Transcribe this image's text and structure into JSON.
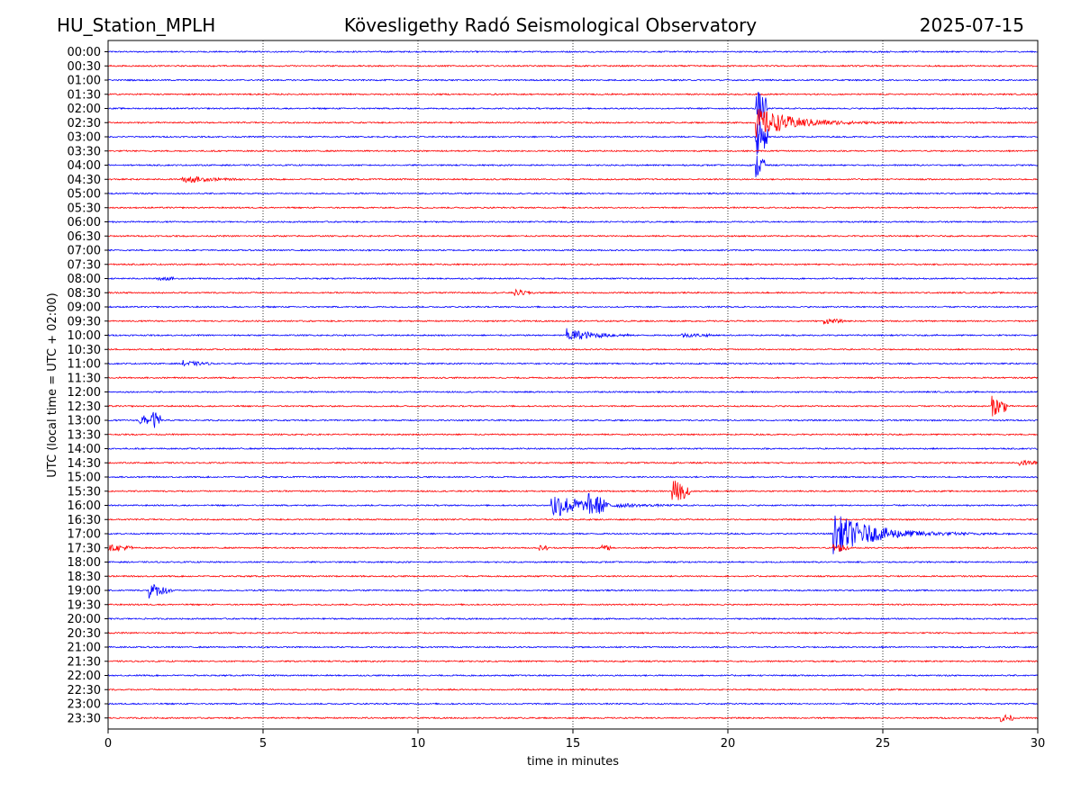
{
  "header": {
    "station": "HU_Station_MPLH",
    "observatory": "Kövesligethy Radó Seismological Observatory",
    "date": "2025-07-15"
  },
  "chart_data": {
    "type": "line",
    "title": "Kövesligethy Radó Seismological Observatory",
    "xlabel": "time in minutes",
    "ylabel": "UTC (local time = UTC + 02:00)",
    "xlim": [
      0,
      30
    ],
    "xticks": [
      "0",
      "5",
      "10",
      "15",
      "20",
      "25",
      "30"
    ],
    "grid": "vertical dotted lines at 5-minute intervals",
    "colors": {
      "even_half_hour": "#0000ff",
      "odd_half_hour": "#ff0000"
    },
    "rows": [
      "00:00",
      "00:30",
      "01:00",
      "01:30",
      "02:00",
      "02:30",
      "03:00",
      "03:30",
      "04:00",
      "04:30",
      "05:00",
      "05:30",
      "06:00",
      "06:30",
      "07:00",
      "07:30",
      "08:00",
      "08:30",
      "09:00",
      "09:30",
      "10:00",
      "10:30",
      "11:00",
      "11:30",
      "12:00",
      "12:30",
      "13:00",
      "13:30",
      "14:00",
      "14:30",
      "15:00",
      "15:30",
      "16:00",
      "16:30",
      "17:00",
      "17:30",
      "18:00",
      "18:30",
      "19:00",
      "19:30",
      "20:00",
      "20:30",
      "21:00",
      "21:30",
      "22:00",
      "22:30",
      "23:00",
      "23:30"
    ],
    "events": [
      {
        "row": "02:30",
        "start_min": 20.9,
        "dur_min": 6.5,
        "amp": 1.8,
        "decay": 0.9
      },
      {
        "row": "02:00",
        "start_min": 20.9,
        "dur_min": 0.4,
        "amp": 2.3,
        "decay": 2.0
      },
      {
        "row": "03:00",
        "start_min": 20.9,
        "dur_min": 0.4,
        "amp": 2.3,
        "decay": 2.0
      },
      {
        "row": "04:00",
        "start_min": 20.9,
        "dur_min": 0.3,
        "amp": 1.6,
        "decay": 2.0
      },
      {
        "row": "04:30",
        "start_min": 2.4,
        "dur_min": 2.0,
        "amp": 0.5,
        "decay": 1.5
      },
      {
        "row": "08:00",
        "start_min": 1.6,
        "dur_min": 0.5,
        "amp": 0.25,
        "decay": 2.0
      },
      {
        "row": "08:30",
        "start_min": 13.1,
        "dur_min": 0.7,
        "amp": 0.35,
        "decay": 2.0
      },
      {
        "row": "09:30",
        "start_min": 23.1,
        "dur_min": 0.6,
        "amp": 0.3,
        "decay": 2.0
      },
      {
        "row": "10:00",
        "start_min": 14.8,
        "dur_min": 2.0,
        "amp": 0.75,
        "decay": 1.2
      },
      {
        "row": "10:00",
        "start_min": 18.5,
        "dur_min": 1.0,
        "amp": 0.2,
        "decay": 1.0
      },
      {
        "row": "11:00",
        "start_min": 2.4,
        "dur_min": 1.0,
        "amp": 0.35,
        "decay": 2.0
      },
      {
        "row": "12:30",
        "start_min": 28.5,
        "dur_min": 0.5,
        "amp": 1.2,
        "decay": 1.5
      },
      {
        "row": "13:00",
        "start_min": 1.0,
        "dur_min": 0.3,
        "amp": 0.7,
        "decay": 2.0
      },
      {
        "row": "13:00",
        "start_min": 1.4,
        "dur_min": 0.3,
        "amp": 1.1,
        "decay": 2.0
      },
      {
        "row": "14:30",
        "start_min": 29.4,
        "dur_min": 0.6,
        "amp": 0.3,
        "decay": 1.5
      },
      {
        "row": "15:30",
        "start_min": 18.2,
        "dur_min": 0.6,
        "amp": 1.4,
        "decay": 1.5
      },
      {
        "row": "16:00",
        "start_min": 14.3,
        "dur_min": 4.5,
        "amp": 1.6,
        "decay": 1.0
      },
      {
        "row": "16:00",
        "start_min": 15.5,
        "dur_min": 0.5,
        "amp": 0.9,
        "decay": 1.0
      },
      {
        "row": "17:00",
        "start_min": 23.4,
        "dur_min": 6.6,
        "amp": 2.4,
        "decay": 0.8
      },
      {
        "row": "17:30",
        "start_min": 0.0,
        "dur_min": 0.8,
        "amp": 0.3,
        "decay": 0.5
      },
      {
        "row": "17:30",
        "start_min": 13.9,
        "dur_min": 0.3,
        "amp": 0.25,
        "decay": 1.0
      },
      {
        "row": "17:30",
        "start_min": 15.9,
        "dur_min": 0.3,
        "amp": 0.25,
        "decay": 1.0
      },
      {
        "row": "17:30",
        "start_min": 23.4,
        "dur_min": 0.5,
        "amp": 0.5,
        "decay": 1.0
      },
      {
        "row": "19:00",
        "start_min": 1.3,
        "dur_min": 0.8,
        "amp": 1.0,
        "decay": 2.0
      },
      {
        "row": "23:30",
        "start_min": 28.8,
        "dur_min": 0.4,
        "amp": 0.45,
        "decay": 1.5
      }
    ]
  }
}
